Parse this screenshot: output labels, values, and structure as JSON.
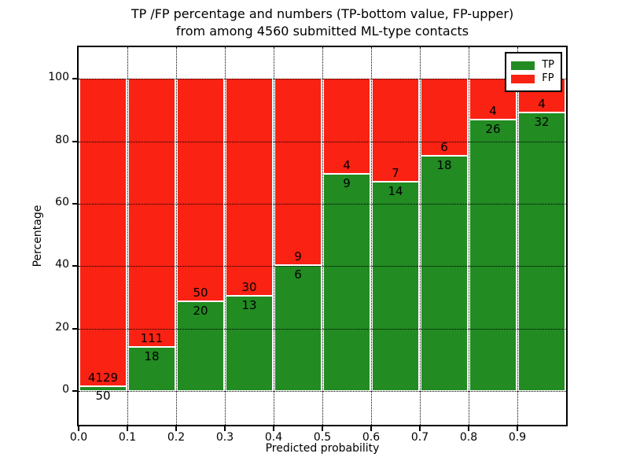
{
  "figure": {
    "title_line1": "TP /FP percentage and numbers (TP-bottom value, FP-upper)",
    "title_line2": "from among 4560 submitted ML-type contacts"
  },
  "chart_data": {
    "type": "bar",
    "variant": "stacked-percentage-histogram",
    "title": "TP /FP percentage and numbers (TP-bottom value, FP-upper)\nfrom among 4560 submitted ML-type contacts",
    "xlabel": "Predicted probability",
    "ylabel": "Percentage",
    "total_contacts": 4560,
    "categories": [
      "0.0-0.1",
      "0.1-0.2",
      "0.2-0.3",
      "0.3-0.4",
      "0.4-0.5",
      "0.5-0.6",
      "0.6-0.7",
      "0.7-0.8",
      "0.8-0.9",
      "0.9-1.0"
    ],
    "bin_starts": [
      0.0,
      0.1,
      0.2,
      0.3,
      0.4,
      0.5,
      0.6,
      0.7,
      0.8,
      0.9
    ],
    "bin_width": 0.1,
    "series": [
      {
        "name": "TP",
        "color": "#228b22",
        "counts": [
          50,
          18,
          20,
          13,
          6,
          9,
          14,
          18,
          26,
          32
        ]
      },
      {
        "name": "FP",
        "color": "#fa2213",
        "counts": [
          4129,
          111,
          50,
          30,
          9,
          4,
          7,
          6,
          4,
          4
        ]
      }
    ],
    "tp_percent_of_bin": [
      1.2,
      14.0,
      28.6,
      30.2,
      40.0,
      69.2,
      66.7,
      75.0,
      86.7,
      88.9
    ],
    "x_tick_labels": [
      "0.0",
      "0.1",
      "0.2",
      "0.3",
      "0.4",
      "0.5",
      "0.6",
      "0.7",
      "0.8",
      "0.9"
    ],
    "y_tick_values": [
      0,
      20,
      40,
      60,
      80,
      100
    ],
    "y_tick_labels": [
      "0",
      "20",
      "40",
      "60",
      "80",
      "100"
    ],
    "xlim": [
      0.0,
      1.0
    ],
    "ylim": [
      -10.8,
      110.1
    ],
    "grid": true,
    "grid_style": "dotted",
    "bar_edge_color": "#ffffff",
    "legend": {
      "position": "upper right",
      "entries": [
        {
          "label": "TP",
          "color": "#228b22"
        },
        {
          "label": "FP",
          "color": "#fa2213"
        }
      ]
    }
  }
}
